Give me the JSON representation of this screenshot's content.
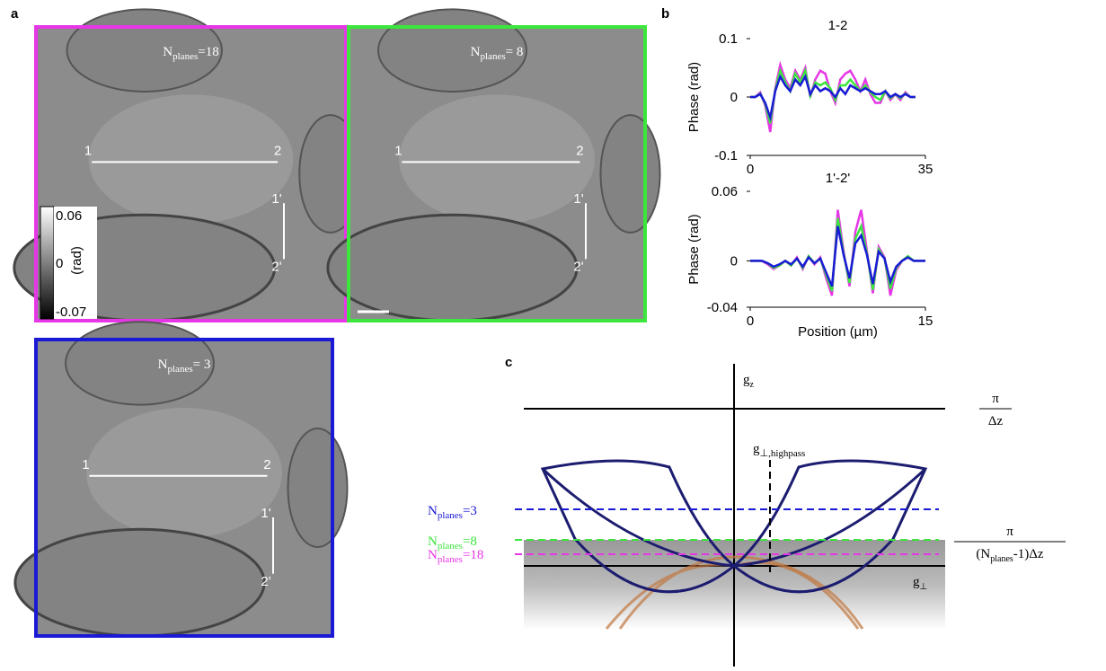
{
  "panel_labels": [
    "a",
    "b",
    "c"
  ],
  "images": [
    {
      "n": "N",
      "sub": "planes",
      "eq": "=18",
      "color": "#e637e6",
      "p1": "1",
      "p2": "2",
      "q1": "1'",
      "q2": "2'"
    },
    {
      "n": "N",
      "sub": "planes",
      "eq": "= 8",
      "color": "#3ce63c",
      "p1": "1",
      "p2": "2",
      "q1": "1'",
      "q2": "2'"
    },
    {
      "n": "N",
      "sub": "planes",
      "eq": "= 3",
      "color": "#1a1ad6",
      "p1": "1",
      "p2": "2",
      "q1": "1'",
      "q2": "2'"
    }
  ],
  "colorbar": {
    "top": "0.06",
    "mid": "0",
    "bottom": "-0.07",
    "unit": "(rad)"
  },
  "chart_data": [
    {
      "type": "line",
      "title": "1-2",
      "y_label": "Phase (rad)",
      "xlim": [
        0,
        35
      ],
      "xticks": [
        0,
        35
      ],
      "ylim": [
        -0.1,
        0.1
      ],
      "yticks": [
        -0.1,
        0,
        0.1
      ],
      "x": [
        0,
        1,
        2,
        3,
        4,
        5,
        6,
        7,
        8,
        9,
        10,
        11,
        12,
        13,
        14,
        15,
        16,
        17,
        18,
        19,
        20,
        21,
        22,
        23,
        24,
        25,
        26,
        27,
        28,
        29,
        30,
        31,
        32,
        33
      ],
      "series": [
        {
          "color": "#e637e6",
          "values": [
            0,
            0,
            0.008,
            -0.015,
            -0.06,
            0.015,
            0.055,
            0.03,
            0.015,
            0.045,
            0.03,
            0.05,
            0.0,
            0.03,
            0.045,
            0.04,
            0.01,
            -0.01,
            0.03,
            0.04,
            0.045,
            0.03,
            0.01,
            0.03,
            0.005,
            -0.01,
            -0.01,
            0.01,
            -0.005,
            0.005,
            -0.005,
            0.008,
            0,
            0
          ]
        },
        {
          "color": "#3ce63c",
          "values": [
            0,
            0,
            0.006,
            -0.012,
            -0.045,
            0.012,
            0.045,
            0.025,
            0.01,
            0.04,
            0.025,
            0.045,
            0.002,
            0.025,
            0.02,
            0.025,
            0.015,
            -0.005,
            0.02,
            0.02,
            0.03,
            0.02,
            0.01,
            0.02,
            0.008,
            0,
            -0.005,
            0.01,
            -0.002,
            0.005,
            -0.002,
            0.006,
            0,
            0
          ]
        },
        {
          "color": "#1a1ad6",
          "values": [
            0,
            0,
            0.005,
            -0.01,
            -0.035,
            0.01,
            0.035,
            0.02,
            0.01,
            0.03,
            0.02,
            0.035,
            0.005,
            0.02,
            0.01,
            0.015,
            0.01,
            0,
            0.015,
            0.005,
            0.02,
            0.015,
            0.01,
            0.015,
            0.01,
            0.005,
            0.005,
            0.01,
            0,
            0.005,
            0,
            0.005,
            0,
            0
          ]
        }
      ]
    },
    {
      "type": "line",
      "title": "1'-2'",
      "y_label": "Phase (rad)",
      "x_label": "Position (µm)",
      "xlim": [
        0,
        15
      ],
      "xticks": [
        0,
        15
      ],
      "ylim": [
        -0.04,
        0.06
      ],
      "yticks": [
        -0.04,
        0,
        0.06
      ],
      "x": [
        0,
        0.5,
        1,
        1.5,
        2,
        2.5,
        3,
        3.5,
        4,
        4.5,
        5,
        5.5,
        6,
        6.5,
        7,
        7.5,
        8,
        8.5,
        9,
        9.5,
        10,
        10.5,
        11,
        11.5,
        12,
        12.5,
        13,
        13.5,
        14,
        14.5,
        15
      ],
      "series": [
        {
          "color": "#e637e6",
          "values": [
            0,
            0,
            0,
            -0.003,
            -0.007,
            -0.004,
            0,
            -0.004,
            0.003,
            -0.007,
            0.004,
            -0.003,
            0.003,
            -0.015,
            -0.03,
            0.044,
            0.008,
            -0.022,
            0.025,
            0.044,
            0.008,
            -0.028,
            0.012,
            0.003,
            -0.03,
            -0.008,
            0,
            0.004,
            0,
            0,
            0
          ]
        },
        {
          "color": "#3ce63c",
          "values": [
            0,
            0,
            0,
            -0.002,
            -0.006,
            -0.004,
            0,
            -0.004,
            0.002,
            -0.006,
            0.004,
            -0.002,
            0.002,
            -0.012,
            -0.026,
            0.037,
            0.006,
            -0.019,
            0.019,
            0.03,
            0.006,
            -0.025,
            0.01,
            0.002,
            -0.024,
            -0.006,
            0,
            0.004,
            0,
            0,
            0
          ]
        },
        {
          "color": "#1a1ad6",
          "values": [
            0,
            0,
            0,
            -0.002,
            -0.005,
            -0.003,
            0,
            -0.003,
            0.002,
            -0.005,
            0.003,
            -0.002,
            0.002,
            -0.01,
            -0.022,
            0.03,
            0.005,
            -0.015,
            0.015,
            0.022,
            0.005,
            -0.02,
            0.008,
            0.002,
            -0.018,
            -0.005,
            0,
            0.003,
            0,
            0,
            0
          ]
        }
      ]
    }
  ],
  "diagram": {
    "gz": "g",
    "gz_sub": "z",
    "top_num": "π",
    "top_den": "Δz",
    "highpass": "g",
    "highpass_sub": "⊥,highpass",
    "n3": {
      "n": "N",
      "sub": "planes",
      "eq": "=3"
    },
    "n8": {
      "n": "N",
      "sub": "planes",
      "eq": "=8"
    },
    "n18": {
      "n": "N",
      "sub": "planes",
      "eq": "=18"
    },
    "low_num": "π",
    "low_den_a": "(N",
    "low_den_sub": "planes",
    "low_den_b": "-1)Δz",
    "gperp": "g",
    "gperp_sub": "⊥"
  }
}
